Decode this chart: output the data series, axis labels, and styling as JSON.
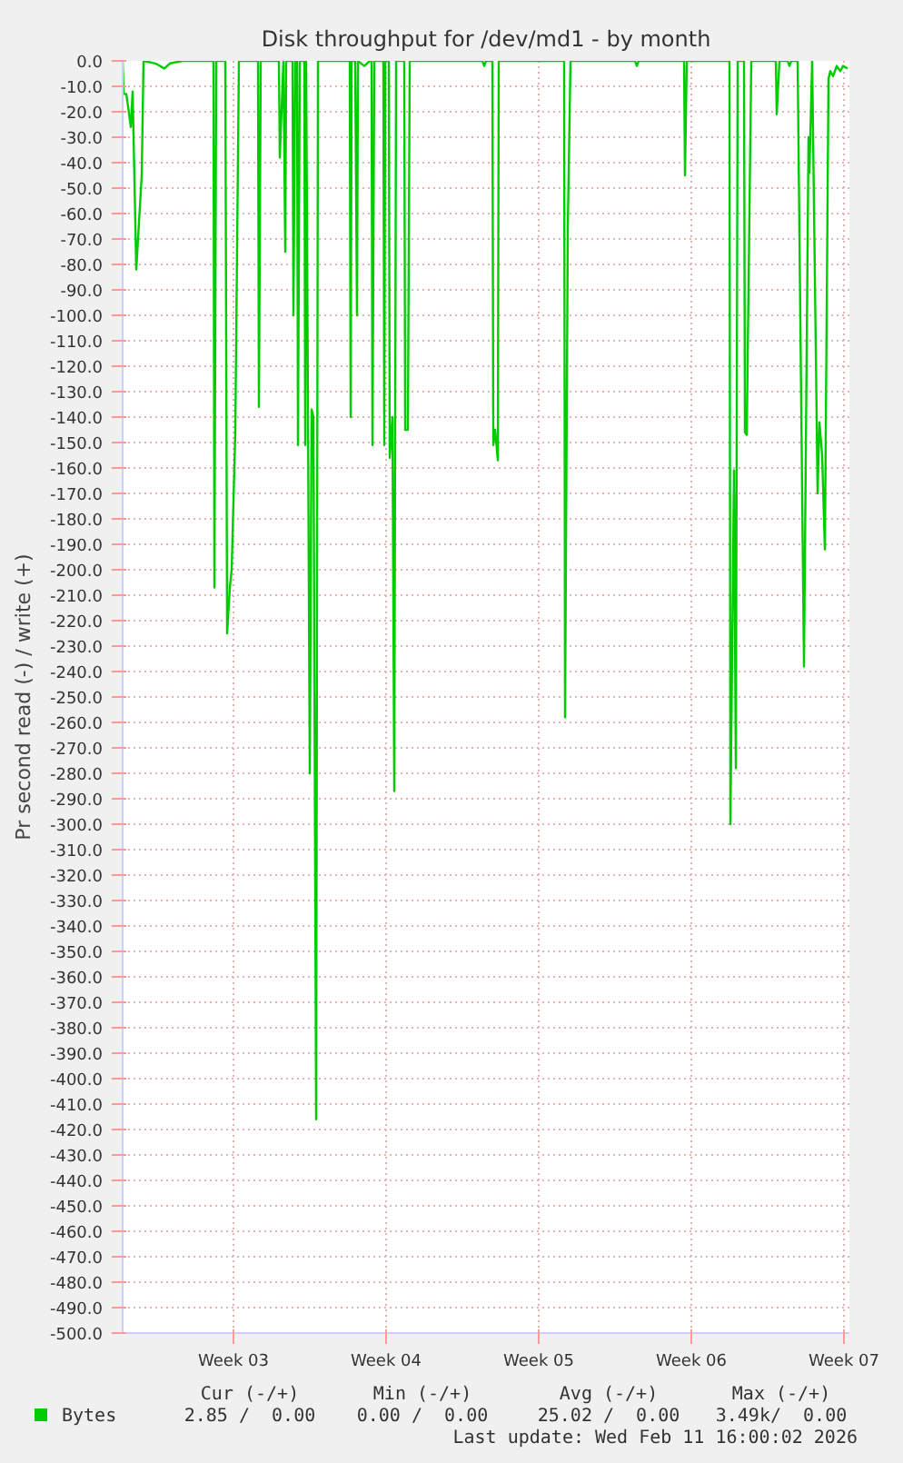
{
  "chart_data": {
    "type": "line",
    "title": "Disk throughput for /dev/md1 - by month",
    "ylabel": "Pr second read (-) / write (+)",
    "x": [
      "2026-01-10T10:00",
      "2026-01-10T11:00",
      "2026-01-10T14:00",
      "2026-01-10T16:00",
      "2026-01-10T19:00",
      "2026-01-10T21:00",
      "2026-01-11T01:00",
      "2026-01-11T07:00",
      "2026-01-11T09:00",
      "2026-01-11T22:00",
      "2026-01-12T08:00",
      "2026-01-12T14:00",
      "2026-01-13T04:00",
      "2026-01-14T14:00",
      "2026-01-14T15:00",
      "2026-01-14T17:00",
      "2026-01-15T03:00",
      "2026-01-15T05:00",
      "2026-01-15T08:00",
      "2026-01-15T10:00",
      "2026-01-15T14:00",
      "2026-01-15T18:00",
      "2026-01-16T15:00",
      "2026-01-16T16:00",
      "2026-01-16T18:00",
      "2026-01-17T14:00",
      "2026-01-17T15:00",
      "2026-01-17T19:00",
      "2026-01-17T21:00",
      "2026-01-17T22:00",
      "2026-01-18T05:00",
      "2026-01-18T06:00",
      "2026-01-18T08:00",
      "2026-01-18T10:00",
      "2026-01-18T11:00",
      "2026-01-18T13:00",
      "2026-01-18T18:00",
      "2026-01-18T19:00",
      "2026-01-18T20:00",
      "2026-01-18T22:00",
      "2026-01-19T00:00",
      "2026-01-19T02:00",
      "2026-01-19T04:00",
      "2026-01-19T07:00",
      "2026-01-19T09:00",
      "2026-01-20T20:00",
      "2026-01-20T21:00",
      "2026-01-20T22:00",
      "2026-01-21T02:00",
      "2026-01-21T04:00",
      "2026-01-21T05:00",
      "2026-01-21T12:00",
      "2026-01-21T18:00",
      "2026-01-21T20:00",
      "2026-01-21T21:00",
      "2026-01-21T23:00",
      "2026-01-22T09:00",
      "2026-01-22T10:00",
      "2026-01-22T11:00",
      "2026-01-22T15:00",
      "2026-01-22T16:00",
      "2026-01-22T19:00",
      "2026-01-22T21:00",
      "2026-01-22T23:00",
      "2026-01-23T08:00",
      "2026-01-23T09:00",
      "2026-01-23T12:00",
      "2026-01-23T14:00",
      "2026-01-26T22:00",
      "2026-01-27T00:00",
      "2026-01-27T02:00",
      "2026-01-27T09:00",
      "2026-01-27T10:00",
      "2026-01-27T12:00",
      "2026-01-27T15:00",
      "2026-01-27T16:00",
      "2026-01-30T16:00",
      "2026-01-30T17:00",
      "2026-01-30T20:00",
      "2026-01-30T23:00",
      "2026-02-02T22:00",
      "2026-02-03T00:00",
      "2026-02-03T02:00",
      "2026-02-05T04:00",
      "2026-02-05T05:00",
      "2026-02-05T07:00",
      "2026-02-07T06:00",
      "2026-02-07T07:00",
      "2026-02-07T11:00",
      "2026-02-07T13:00",
      "2026-02-07T15:00",
      "2026-02-07T22:00",
      "2026-02-07T23:00",
      "2026-02-08T01:00",
      "2026-02-08T06:00",
      "2026-02-09T09:00",
      "2026-02-09T10:00",
      "2026-02-09T13:00",
      "2026-02-09T22:00",
      "2026-02-10T00:00",
      "2026-02-10T02:00",
      "2026-02-10T09:00",
      "2026-02-10T16:00",
      "2026-02-10T21:00",
      "2026-02-10T22:00",
      "2026-02-11T01:00",
      "2026-02-11T07:00",
      "2026-02-11T09:00",
      "2026-02-11T12:00",
      "2026-02-11T15:00",
      "2026-02-11T19:00",
      "2026-02-11T21:00",
      "2026-02-12T00:00",
      "2026-02-12T04:00",
      "2026-02-12T08:00",
      "2026-02-12T11:00",
      "2026-02-12T16:00"
    ],
    "series": [
      {
        "name": "Bytes",
        "color": "#00cc00",
        "values": [
          0,
          -13,
          -13,
          -18,
          -26,
          -12,
          -82,
          -45,
          0,
          -1,
          -3,
          -1,
          0,
          0,
          -207,
          0,
          0,
          -225,
          -207,
          -200,
          -146,
          0,
          0,
          -136,
          0,
          0,
          -38,
          0,
          -75,
          0,
          0,
          -100,
          0,
          0,
          -151,
          0,
          0,
          -151,
          0,
          -137,
          -280,
          -137,
          -140,
          -416,
          0,
          0,
          -140,
          0,
          0,
          -100,
          0,
          -2,
          0,
          0,
          -151,
          0,
          0,
          -151,
          0,
          0,
          -156,
          -140,
          -287,
          0,
          0,
          -145,
          -145,
          0,
          0,
          -2,
          0,
          0,
          -151,
          -145,
          -157,
          0,
          0,
          -258,
          -66,
          0,
          0,
          -2,
          0,
          0,
          -45,
          0,
          0,
          -300,
          -161,
          -278,
          0,
          0,
          -146,
          -147,
          0,
          0,
          -21,
          0,
          0,
          -2,
          0,
          0,
          -238,
          -30,
          -44,
          0,
          -170,
          -142,
          -155,
          -192,
          -7,
          -4,
          -6,
          -2,
          -4,
          -2,
          -3
        ]
      }
    ],
    "xlim": [
      "2026-01-10T10:00",
      "2026-02-12T18:00"
    ],
    "xticks": [
      {
        "value": "2026-01-15T12:00",
        "label": "Week 03"
      },
      {
        "value": "2026-01-22T12:00",
        "label": "Week 04"
      },
      {
        "value": "2026-01-29T12:00",
        "label": "Week 05"
      },
      {
        "value": "2026-02-05T12:00",
        "label": "Week 06"
      },
      {
        "value": "2026-02-12T12:00",
        "label": "Week 07"
      }
    ],
    "ylim": [
      -500,
      0
    ],
    "yticks": [
      {
        "value": 0,
        "label": "0.0"
      },
      {
        "value": -10,
        "label": "-10.0"
      },
      {
        "value": -20,
        "label": "-20.0"
      },
      {
        "value": -30,
        "label": "-30.0"
      },
      {
        "value": -40,
        "label": "-40.0"
      },
      {
        "value": -50,
        "label": "-50.0"
      },
      {
        "value": -60,
        "label": "-60.0"
      },
      {
        "value": -70,
        "label": "-70.0"
      },
      {
        "value": -80,
        "label": "-80.0"
      },
      {
        "value": -90,
        "label": "-90.0"
      },
      {
        "value": -100,
        "label": "-100.0"
      },
      {
        "value": -110,
        "label": "-110.0"
      },
      {
        "value": -120,
        "label": "-120.0"
      },
      {
        "value": -130,
        "label": "-130.0"
      },
      {
        "value": -140,
        "label": "-140.0"
      },
      {
        "value": -150,
        "label": "-150.0"
      },
      {
        "value": -160,
        "label": "-160.0"
      },
      {
        "value": -170,
        "label": "-170.0"
      },
      {
        "value": -180,
        "label": "-180.0"
      },
      {
        "value": -190,
        "label": "-190.0"
      },
      {
        "value": -200,
        "label": "-200.0"
      },
      {
        "value": -210,
        "label": "-210.0"
      },
      {
        "value": -220,
        "label": "-220.0"
      },
      {
        "value": -230,
        "label": "-230.0"
      },
      {
        "value": -240,
        "label": "-240.0"
      },
      {
        "value": -250,
        "label": "-250.0"
      },
      {
        "value": -260,
        "label": "-260.0"
      },
      {
        "value": -270,
        "label": "-270.0"
      },
      {
        "value": -280,
        "label": "-280.0"
      },
      {
        "value": -290,
        "label": "-290.0"
      },
      {
        "value": -300,
        "label": "-300.0"
      },
      {
        "value": -310,
        "label": "-310.0"
      },
      {
        "value": -320,
        "label": "-320.0"
      },
      {
        "value": -330,
        "label": "-330.0"
      },
      {
        "value": -340,
        "label": "-340.0"
      },
      {
        "value": -350,
        "label": "-350.0"
      },
      {
        "value": -360,
        "label": "-360.0"
      },
      {
        "value": -370,
        "label": "-370.0"
      },
      {
        "value": -380,
        "label": "-380.0"
      },
      {
        "value": -390,
        "label": "-390.0"
      },
      {
        "value": -400,
        "label": "-400.0"
      },
      {
        "value": -410,
        "label": "-410.0"
      },
      {
        "value": -420,
        "label": "-420.0"
      },
      {
        "value": -430,
        "label": "-430.0"
      },
      {
        "value": -440,
        "label": "-440.0"
      },
      {
        "value": -450,
        "label": "-450.0"
      },
      {
        "value": -460,
        "label": "-460.0"
      },
      {
        "value": -470,
        "label": "-470.0"
      },
      {
        "value": -480,
        "label": "-480.0"
      },
      {
        "value": -490,
        "label": "-490.0"
      },
      {
        "value": -500,
        "label": "-500.0"
      }
    ],
    "grid": true,
    "legend": "bottom left",
    "marker": "none",
    "line_style": "solid",
    "annotations": [
      "Cur (-/+)",
      "Min (-/+)",
      "Avg (-/+)",
      "Max (-/+)",
      "2.85 /  0.00",
      "0.00 /  0.00",
      "25.02 /  0.00",
      "3.49k/  0.00",
      "Last update: Wed Feb 11 16:00:02 2026"
    ]
  }
}
